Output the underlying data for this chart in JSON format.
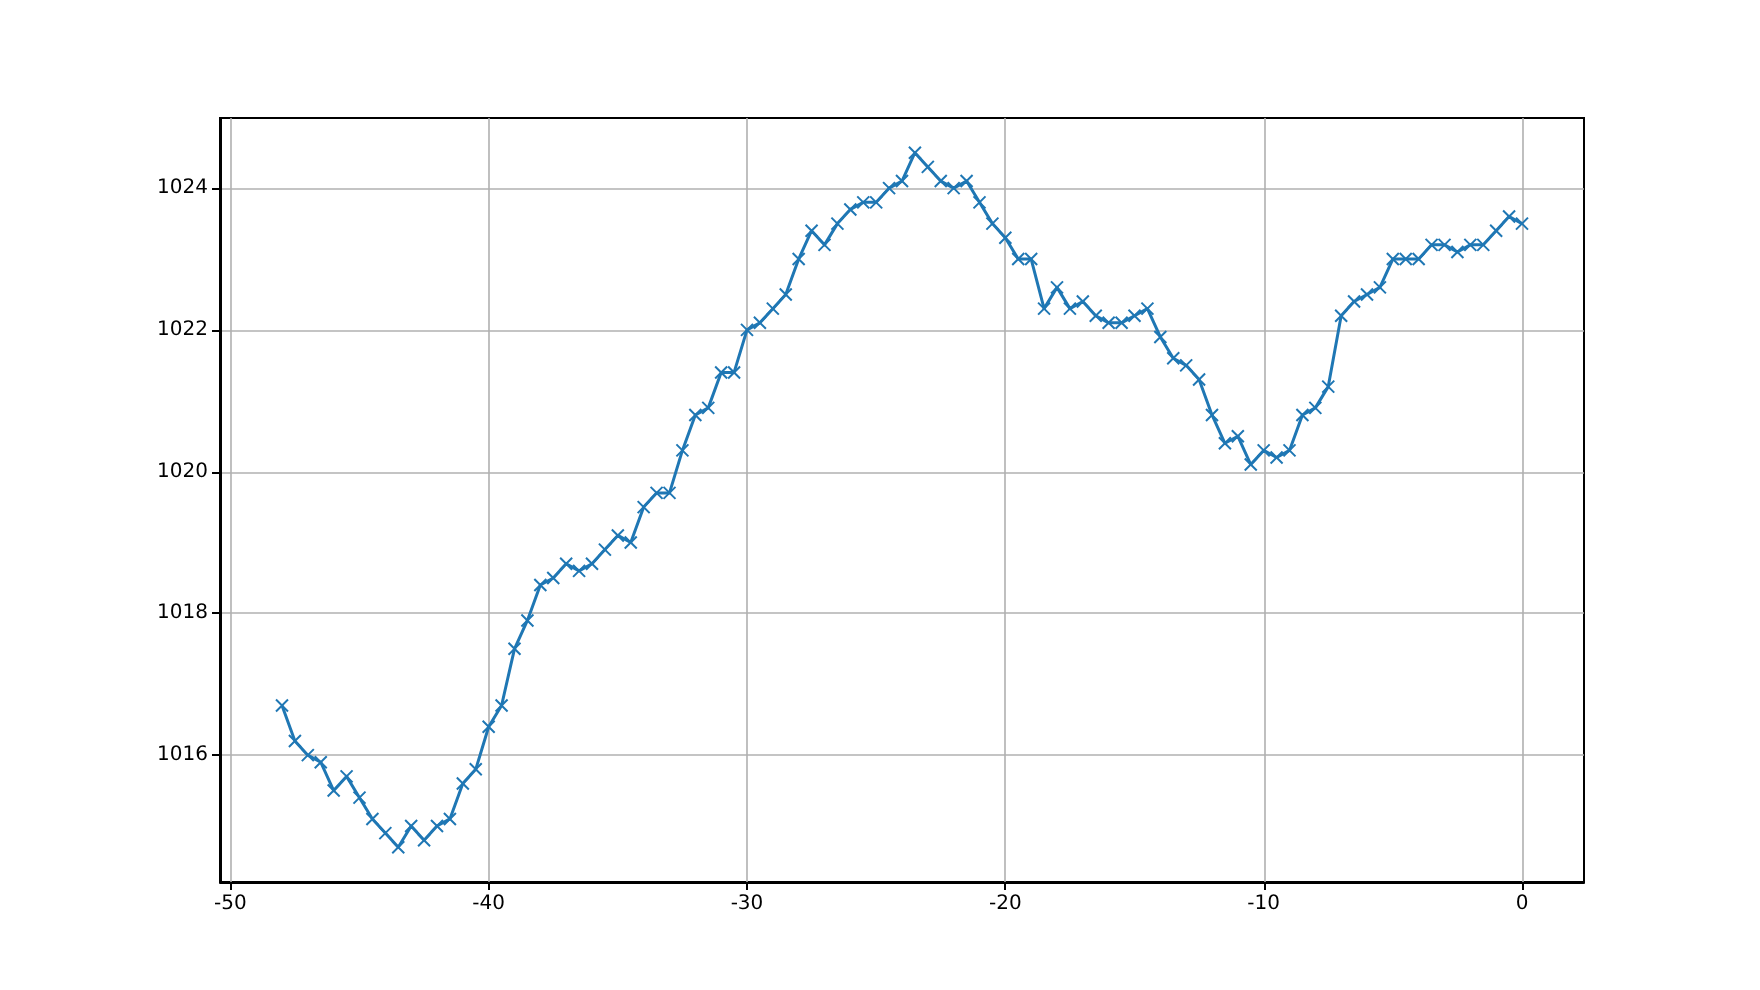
{
  "chart_data": {
    "type": "line",
    "color": "#1f77b4",
    "marker": "cross",
    "grid": true,
    "x": [
      -48,
      -47.5,
      -47,
      -46.5,
      -46,
      -45.5,
      -45,
      -44.5,
      -44,
      -43.5,
      -43,
      -42.5,
      -42,
      -41.5,
      -41,
      -40.5,
      -40,
      -39.5,
      -39,
      -38.5,
      -38,
      -37.5,
      -37,
      -36.5,
      -36,
      -35.5,
      -35,
      -34.5,
      -34,
      -33.5,
      -33,
      -32.5,
      -32,
      -31.5,
      -31,
      -30.5,
      -30,
      -29.5,
      -29,
      -28.5,
      -28,
      -27.5,
      -27,
      -26.5,
      -26,
      -25.5,
      -25,
      -24.5,
      -24,
      -23.5,
      -23,
      -22.5,
      -22,
      -21.5,
      -21,
      -20.5,
      -20,
      -19.5,
      -19,
      -18.5,
      -18,
      -17.5,
      -17,
      -16.5,
      -16,
      -15.5,
      -15,
      -14.5,
      -14,
      -13.5,
      -13,
      -12.5,
      -12,
      -11.5,
      -11,
      -10.5,
      -10,
      -9.5,
      -9,
      -8.5,
      -8,
      -7.5,
      -7,
      -6.5,
      -6,
      -5.5,
      -5,
      -4.5,
      -4,
      -3.5,
      -3,
      -2.5,
      -2,
      -1.5,
      -1,
      -0.5,
      0
    ],
    "values": [
      1016.7,
      1016.2,
      1016.0,
      1015.9,
      1015.5,
      1015.7,
      1015.4,
      1015.1,
      1014.9,
      1014.7,
      1015.0,
      1014.8,
      1015.0,
      1015.1,
      1015.6,
      1015.8,
      1016.4,
      1016.7,
      1017.5,
      1017.9,
      1018.4,
      1018.5,
      1018.7,
      1018.6,
      1018.7,
      1018.9,
      1019.1,
      1019.0,
      1019.5,
      1019.7,
      1019.7,
      1020.3,
      1020.8,
      1020.9,
      1021.4,
      1021.4,
      1022.0,
      1022.1,
      1022.3,
      1022.5,
      1023.0,
      1023.4,
      1023.2,
      1023.5,
      1023.7,
      1023.8,
      1023.8,
      1024.0,
      1024.1,
      1024.5,
      1024.3,
      1024.1,
      1024.0,
      1024.1,
      1023.8,
      1023.5,
      1023.3,
      1023.0,
      1023.0,
      1022.3,
      1022.6,
      1022.3,
      1022.4,
      1022.2,
      1022.1,
      1022.1,
      1022.2,
      1022.3,
      1021.9,
      1021.6,
      1021.5,
      1021.3,
      1020.8,
      1020.4,
      1020.5,
      1020.1,
      1020.3,
      1020.2,
      1020.3,
      1020.8,
      1020.9,
      1021.2,
      1022.2,
      1022.4,
      1022.5,
      1022.6,
      1023.0,
      1023.0,
      1023.0,
      1023.2,
      1023.2,
      1023.1,
      1023.2,
      1023.2,
      1023.4,
      1023.6,
      1023.5
    ],
    "xlim": [
      -50.4,
      2.4
    ],
    "ylim": [
      1014.21,
      1024.99
    ],
    "xticks": [
      -50,
      -40,
      -30,
      -20,
      -10,
      0
    ],
    "yticks": [
      1016,
      1018,
      1020,
      1022,
      1024
    ]
  }
}
